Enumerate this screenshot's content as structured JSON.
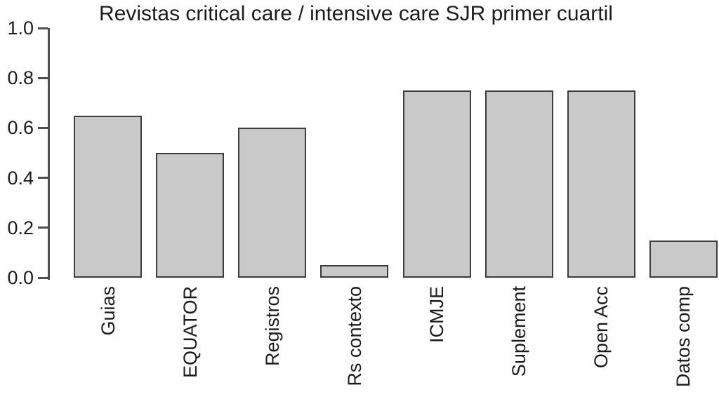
{
  "chart_data": {
    "type": "bar",
    "title": "Revistas critical care / intensive care SJR primer cuartil",
    "categories": [
      "Guias",
      "EQUATOR",
      "Registros",
      "Rs contexto",
      "ICMJE",
      "Suplement",
      "Open Acc",
      "Datos comp"
    ],
    "values": [
      0.65,
      0.5,
      0.6,
      0.05,
      0.75,
      0.75,
      0.75,
      0.15
    ],
    "xlabel": "",
    "ylabel": "",
    "ylim": [
      0,
      1.0
    ],
    "yticks": [
      0.0,
      0.2,
      0.4,
      0.6,
      0.8,
      1.0
    ],
    "ytick_decimals": 1,
    "grid": false,
    "legend": "none",
    "colors": {
      "bar_fill": "#c9c9c9",
      "bar_border": "#3d3d3d",
      "axis": "#4f4f4f",
      "text": "#1c1c1c"
    }
  }
}
